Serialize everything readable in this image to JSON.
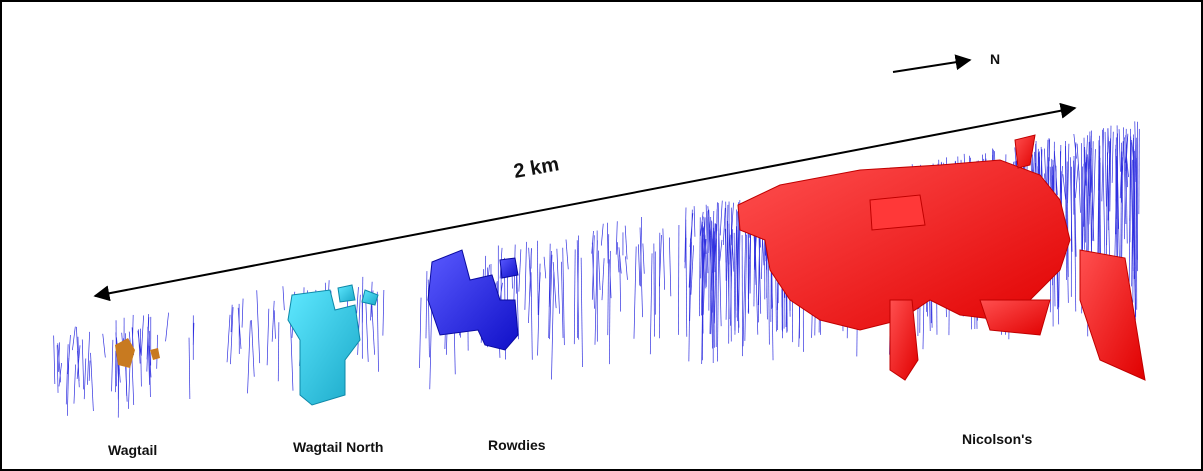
{
  "north_label": "N",
  "scale_label": "2 km",
  "deposits": [
    {
      "label": "Wagtail"
    },
    {
      "label": "Wagtail North"
    },
    {
      "label": "Rowdies"
    },
    {
      "label": "Nicolson's"
    }
  ]
}
